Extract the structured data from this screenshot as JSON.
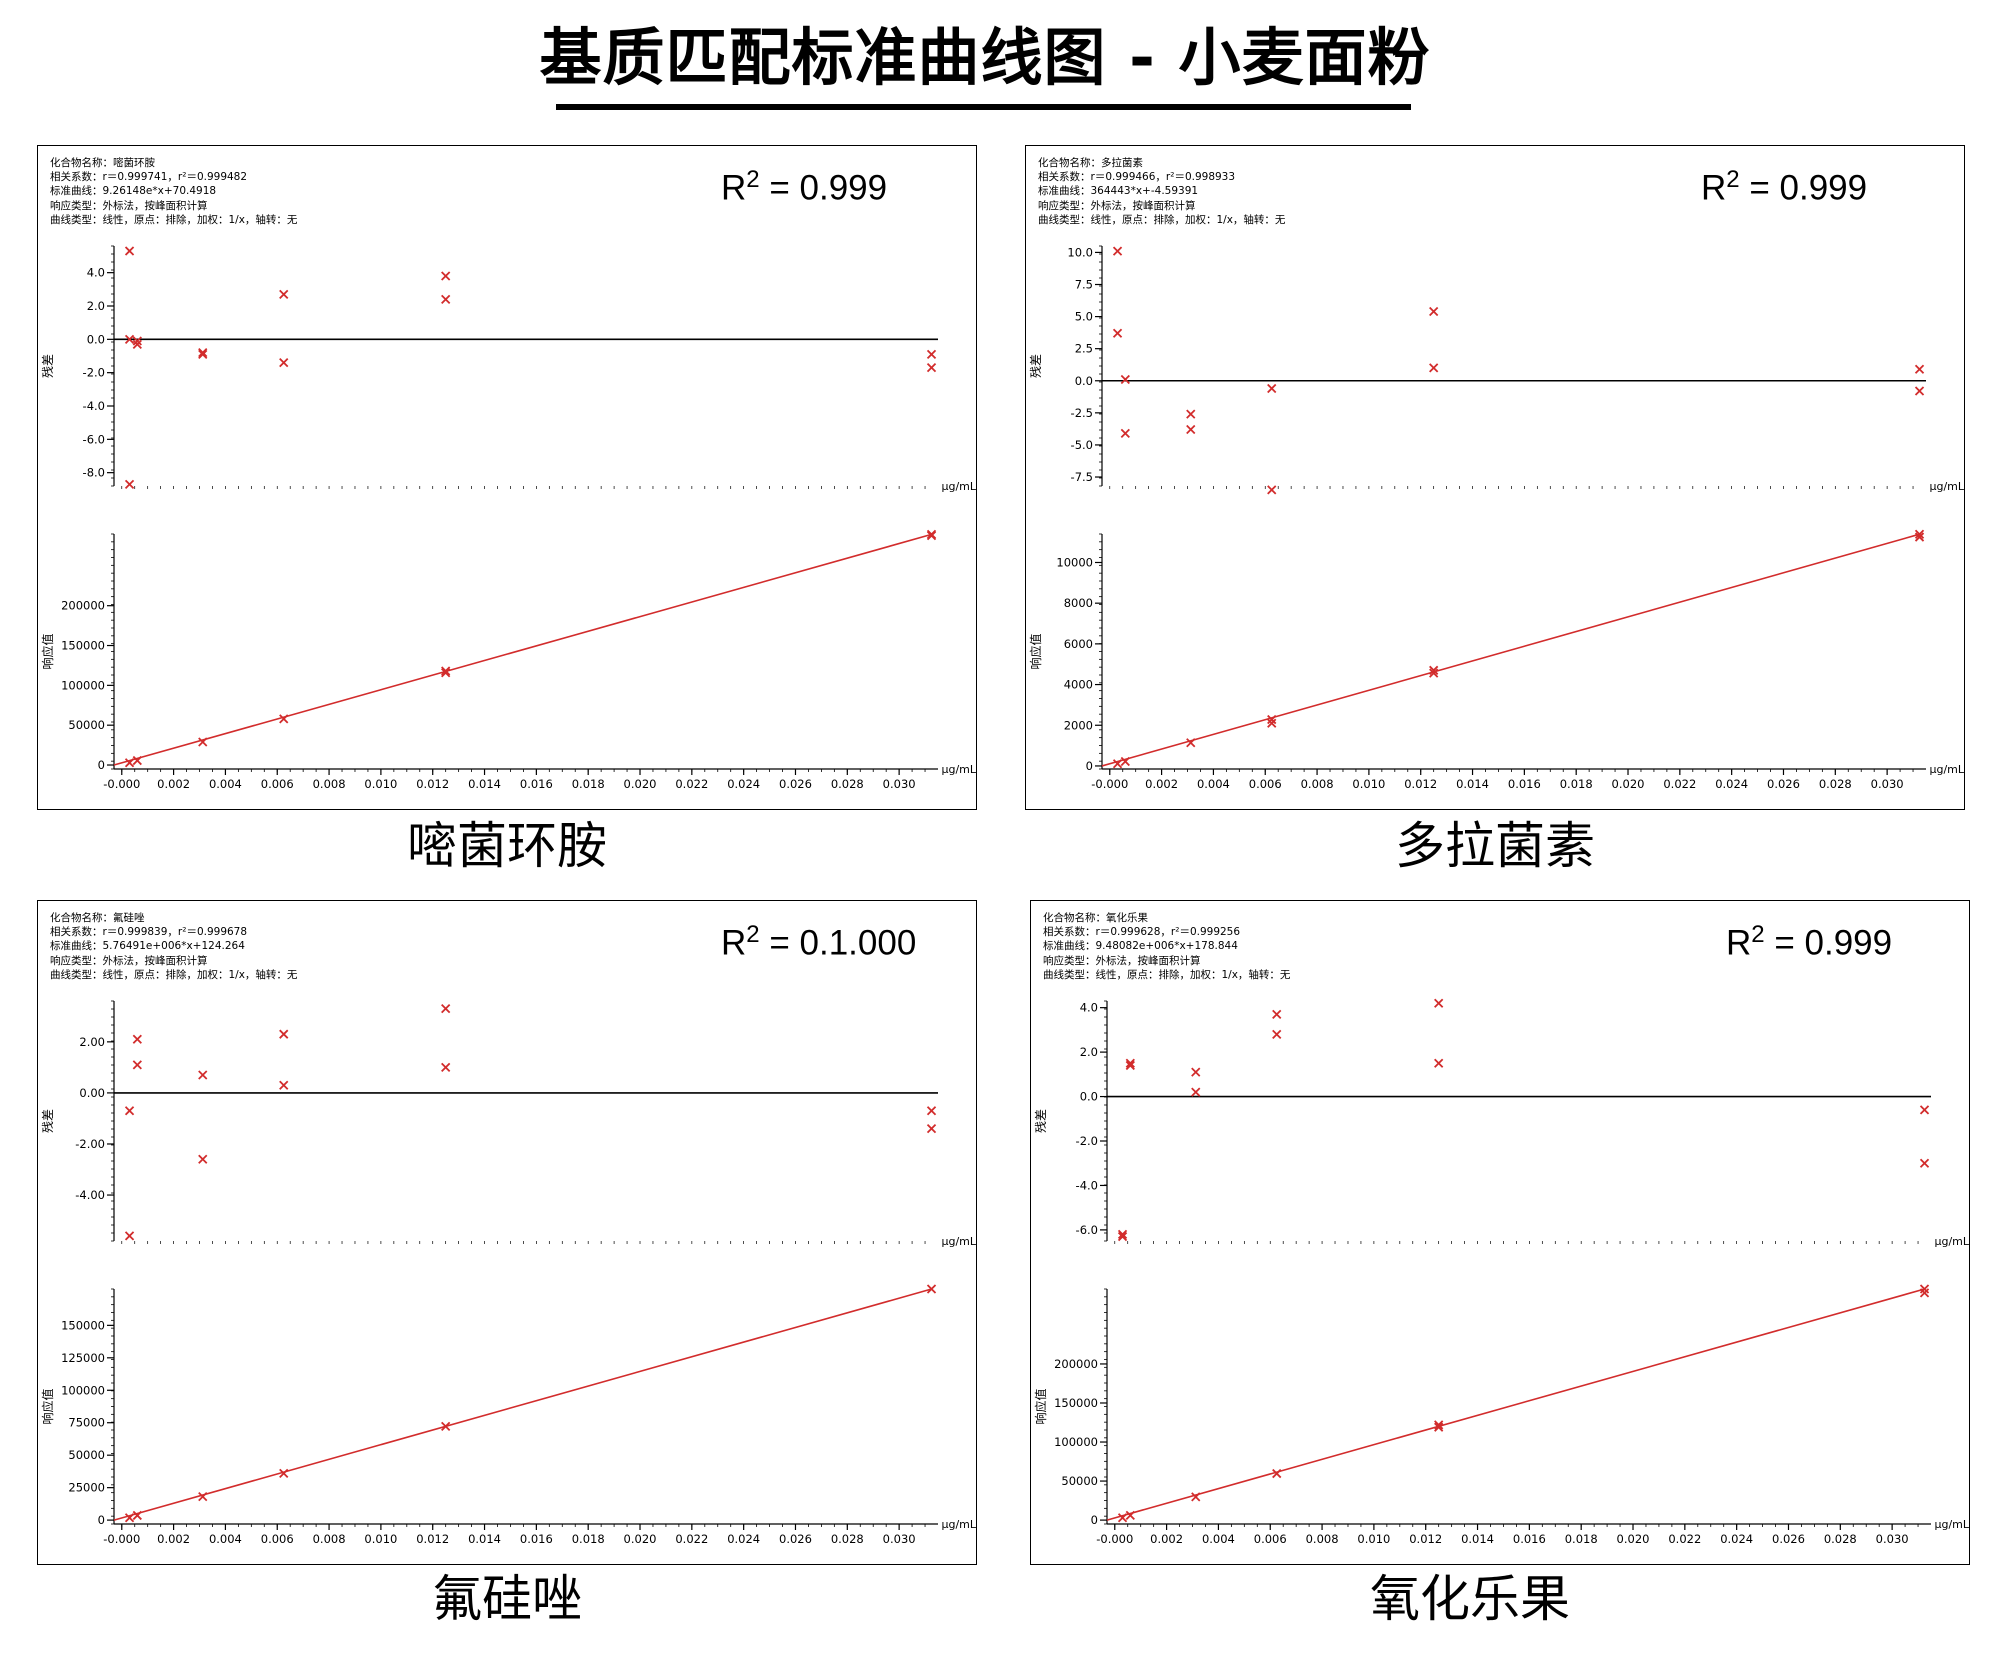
{
  "page": {
    "title": "基质匹配标准曲线图 - 小麦面粉"
  },
  "panels": [
    {
      "caption": "嘧菌环胺",
      "info": [
        "化合物名称：嘧菌环胺",
        "相关系数：r＝0.999741，r²＝0.999482",
        "标准曲线：9.26148e*x+70.4918",
        "响应类型：外标法，按峰面积计算",
        "曲线类型：线性，原点：排除，加权：1/x，轴转：无"
      ],
      "r2_label": "R",
      "r2_sup": "2",
      "r2_value": " = 0.999",
      "unit": "μg/mL"
    },
    {
      "caption": "多拉菌素",
      "info": [
        "化合物名称：多拉菌素",
        "相关系数：r＝0.999466，r²＝0.998933",
        "标准曲线：364443*x+-4.59391",
        "响应类型：外标法，按峰面积计算",
        "曲线类型：线性，原点：排除，加权：1/x，轴转：无"
      ],
      "r2_label": "R",
      "r2_sup": "2",
      "r2_value": " = 0.999",
      "unit": "μg/mL"
    },
    {
      "caption": "氟硅唑",
      "info": [
        "化合物名称：氟硅唑",
        "相关系数：r＝0.999839，r²＝0.999678",
        "标准曲线：5.76491e+006*x+124.264",
        "响应类型：外标法，按峰面积计算",
        "曲线类型：线性，原点：排除，加权：1/x，轴转：无"
      ],
      "r2_label": "R",
      "r2_sup": "2",
      "r2_value": " = 0.1.000",
      "unit": "μg/mL"
    },
    {
      "caption": "氧化乐果",
      "info": [
        "化合物名称：氧化乐果",
        "相关系数：r＝0.999628，r²＝0.999256",
        "标准曲线：9.48082e+006*x+178.844",
        "响应类型：外标法，按峰面积计算",
        "曲线类型：线性，原点：排除，加权：1/x，轴转：无"
      ],
      "r2_label": "R",
      "r2_sup": "2",
      "r2_value": " = 0.999",
      "unit": "μg/mL"
    }
  ],
  "chart_data": [
    {
      "compound": "嘧菌环胺",
      "part": "residual",
      "type": "scatter",
      "ylabel": "残差",
      "xlabel": "μg/mL",
      "ylim": [
        -8.8,
        5.6
      ],
      "xlim": [
        -0.0003,
        0.0315
      ],
      "yticks": [
        4.0,
        2.0,
        0.0,
        -2.0,
        -4.0,
        -6.0,
        -8.0
      ],
      "yticklabels": [
        "4.0",
        "2.0",
        "0.0",
        "-2.0",
        "-4.0",
        "-6.0",
        "-8.0"
      ],
      "zero_line": true,
      "marker_color": "#d22c2c",
      "points": [
        [
          0.0003,
          5.3
        ],
        [
          0.0003,
          -8.7
        ],
        [
          0.0003,
          0.0
        ],
        [
          0.0006,
          -0.1
        ],
        [
          0.0006,
          -0.3
        ],
        [
          0.003125,
          -0.8
        ],
        [
          0.003125,
          -0.9
        ],
        [
          0.00625,
          2.7
        ],
        [
          0.00625,
          -1.4
        ],
        [
          0.0125,
          3.8
        ],
        [
          0.0125,
          2.4
        ],
        [
          0.03125,
          -0.9
        ],
        [
          0.03125,
          -1.7
        ]
      ]
    },
    {
      "compound": "嘧菌环胺",
      "part": "calibration",
      "type": "scatter",
      "ylabel": "响应值",
      "xlabel": "μg/mL",
      "ylim": [
        -5000,
        290000
      ],
      "xlim": [
        -0.0003,
        0.0315
      ],
      "yticks": [
        0,
        50000,
        100000,
        150000,
        200000
      ],
      "yticklabels": [
        "0",
        "50000",
        "100000",
        "150000",
        "200000"
      ],
      "xticks": [
        0.0,
        0.002,
        0.004,
        0.006,
        0.008,
        0.01,
        0.012,
        0.014,
        0.016,
        0.018,
        0.02,
        0.022,
        0.024,
        0.026,
        0.028,
        0.03
      ],
      "xticklabels": [
        "-0.000",
        "0.002",
        "0.004",
        "0.006",
        "0.008",
        "0.010",
        "0.012",
        "0.014",
        "0.016",
        "0.018",
        "0.020",
        "0.022",
        "0.024",
        "0.026",
        "0.028",
        "0.030"
      ],
      "fit_line": {
        "x": [
          -0.0003,
          0.03125
        ],
        "y": [
          0,
          289500
        ]
      },
      "line_color": "#d22c2c",
      "marker_color": "#d22c2c",
      "points": [
        [
          0.0003,
          2800
        ],
        [
          0.0006,
          5600
        ],
        [
          0.003125,
          28900
        ],
        [
          0.00625,
          57900
        ],
        [
          0.0125,
          115800
        ],
        [
          0.0125,
          118000
        ],
        [
          0.03125,
          289500
        ],
        [
          0.03125,
          288000
        ]
      ]
    },
    {
      "compound": "多拉菌素",
      "part": "residual",
      "type": "scatter",
      "ylabel": "残差",
      "xlabel": "μg/mL",
      "ylim": [
        -8.2,
        10.5
      ],
      "xlim": [
        -0.0003,
        0.0315
      ],
      "yticks": [
        10.0,
        7.5,
        5.0,
        2.5,
        0.0,
        -2.5,
        -5.0,
        -7.5
      ],
      "yticklabels": [
        "10.0",
        "7.5",
        "5.0",
        "2.5",
        "0.0",
        "-2.5",
        "-5.0",
        "-7.5"
      ],
      "zero_line": true,
      "marker_color": "#d22c2c",
      "points": [
        [
          0.0003,
          10.1
        ],
        [
          0.0003,
          3.7
        ],
        [
          0.0006,
          0.1
        ],
        [
          0.0006,
          -4.1
        ],
        [
          0.003125,
          -2.6
        ],
        [
          0.003125,
          -3.8
        ],
        [
          0.00625,
          -0.6
        ],
        [
          0.00625,
          -8.5
        ],
        [
          0.0125,
          5.4
        ],
        [
          0.0125,
          1.0
        ],
        [
          0.03125,
          0.9
        ],
        [
          0.03125,
          -0.8
        ]
      ]
    },
    {
      "compound": "多拉菌素",
      "part": "calibration",
      "type": "scatter",
      "ylabel": "响应值",
      "xlabel": "μg/mL",
      "ylim": [
        -150,
        11400
      ],
      "xlim": [
        -0.0003,
        0.0315
      ],
      "yticks": [
        0,
        2000,
        4000,
        6000,
        8000,
        10000
      ],
      "yticklabels": [
        "0",
        "2000",
        "4000",
        "6000",
        "8000",
        "10000"
      ],
      "xticks": [
        0.0,
        0.002,
        0.004,
        0.006,
        0.008,
        0.01,
        0.012,
        0.014,
        0.016,
        0.018,
        0.02,
        0.022,
        0.024,
        0.026,
        0.028,
        0.03
      ],
      "xticklabels": [
        "-0.000",
        "0.002",
        "0.004",
        "0.006",
        "0.008",
        "0.010",
        "0.012",
        "0.014",
        "0.016",
        "0.018",
        "0.020",
        "0.022",
        "0.024",
        "0.026",
        "0.028",
        "0.030"
      ],
      "fit_line": {
        "x": [
          -0.0003,
          0.03125
        ],
        "y": [
          0,
          11390
        ]
      },
      "line_color": "#d22c2c",
      "marker_color": "#d22c2c",
      "points": [
        [
          0.0003,
          110
        ],
        [
          0.0006,
          220
        ],
        [
          0.003125,
          1140
        ],
        [
          0.00625,
          2100
        ],
        [
          0.00625,
          2280
        ],
        [
          0.0125,
          4560
        ],
        [
          0.0125,
          4700
        ],
        [
          0.03125,
          11390
        ],
        [
          0.03125,
          11250
        ]
      ]
    },
    {
      "compound": "氟硅唑",
      "part": "residual",
      "type": "scatter",
      "ylabel": "残差",
      "xlabel": "μg/mL",
      "ylim": [
        -5.8,
        3.6
      ],
      "xlim": [
        -0.0003,
        0.0315
      ],
      "yticks": [
        2.0,
        0.0,
        -2.0,
        -4.0
      ],
      "yticklabels": [
        "2.00",
        "0.00",
        "-2.00",
        "-4.00"
      ],
      "zero_line": true,
      "marker_color": "#d22c2c",
      "points": [
        [
          0.0003,
          -0.7
        ],
        [
          0.0003,
          -5.6
        ],
        [
          0.0006,
          2.1
        ],
        [
          0.0006,
          1.1
        ],
        [
          0.003125,
          0.7
        ],
        [
          0.003125,
          -2.6
        ],
        [
          0.00625,
          2.3
        ],
        [
          0.00625,
          0.3
        ],
        [
          0.0125,
          3.3
        ],
        [
          0.0125,
          1.0
        ],
        [
          0.03125,
          -0.7
        ],
        [
          0.03125,
          -1.4
        ]
      ]
    },
    {
      "compound": "氟硅唑",
      "part": "calibration",
      "type": "scatter",
      "ylabel": "响应值",
      "xlabel": "μg/mL",
      "ylim": [
        -3000,
        178000
      ],
      "xlim": [
        -0.0003,
        0.0315
      ],
      "yticks": [
        0,
        25000,
        50000,
        75000,
        100000,
        125000,
        150000
      ],
      "yticklabels": [
        "0",
        "25000",
        "50000",
        "75000",
        "100000",
        "125000",
        "150000"
      ],
      "xticks": [
        0.0,
        0.002,
        0.004,
        0.006,
        0.008,
        0.01,
        0.012,
        0.014,
        0.016,
        0.018,
        0.02,
        0.022,
        0.024,
        0.026,
        0.028,
        0.03
      ],
      "xticklabels": [
        "-0.000",
        "0.002",
        "0.004",
        "0.006",
        "0.008",
        "0.010",
        "0.012",
        "0.014",
        "0.016",
        "0.018",
        "0.020",
        "0.022",
        "0.024",
        "0.026",
        "0.028",
        "0.030"
      ],
      "fit_line": {
        "x": [
          -0.0003,
          0.03125
        ],
        "y": [
          0,
          178000
        ]
      },
      "line_color": "#d22c2c",
      "marker_color": "#d22c2c",
      "points": [
        [
          0.0003,
          1800
        ],
        [
          0.0006,
          3600
        ],
        [
          0.003125,
          18100
        ],
        [
          0.00625,
          36000
        ],
        [
          0.0125,
          72200
        ],
        [
          0.03125,
          178000
        ]
      ]
    },
    {
      "compound": "氧化乐果",
      "part": "residual",
      "type": "scatter",
      "ylabel": "残差",
      "xlabel": "μg/mL",
      "ylim": [
        -6.5,
        4.3
      ],
      "xlim": [
        -0.0003,
        0.0315
      ],
      "yticks": [
        4.0,
        2.0,
        0.0,
        -2.0,
        -4.0,
        -6.0
      ],
      "yticklabels": [
        "4.0",
        "2.0",
        "0.0",
        "-2.0",
        "-4.0",
        "-6.0"
      ],
      "zero_line": true,
      "marker_color": "#d22c2c",
      "points": [
        [
          0.0003,
          -6.2
        ],
        [
          0.0003,
          -6.3
        ],
        [
          0.0006,
          1.5
        ],
        [
          0.0006,
          1.4
        ],
        [
          0.003125,
          1.1
        ],
        [
          0.003125,
          0.2
        ],
        [
          0.00625,
          3.7
        ],
        [
          0.00625,
          2.8
        ],
        [
          0.0125,
          4.2
        ],
        [
          0.0125,
          1.5
        ],
        [
          0.03125,
          -0.6
        ],
        [
          0.03125,
          -3.0
        ]
      ]
    },
    {
      "compound": "氧化乐果",
      "part": "calibration",
      "type": "scatter",
      "ylabel": "响应值",
      "xlabel": "μg/mL",
      "ylim": [
        -5000,
        296000
      ],
      "xlim": [
        -0.0003,
        0.0315
      ],
      "yticks": [
        0,
        50000,
        100000,
        150000,
        200000
      ],
      "yticklabels": [
        "0",
        "50000",
        "100000",
        "150000",
        "200000"
      ],
      "xticks": [
        0.0,
        0.002,
        0.004,
        0.006,
        0.008,
        0.01,
        0.012,
        0.014,
        0.016,
        0.018,
        0.02,
        0.022,
        0.024,
        0.026,
        0.028,
        0.03
      ],
      "xticklabels": [
        "-0.000",
        "0.002",
        "0.004",
        "0.006",
        "0.008",
        "0.010",
        "0.012",
        "0.014",
        "0.016",
        "0.018",
        "0.020",
        "0.022",
        "0.024",
        "0.026",
        "0.028",
        "0.030"
      ],
      "fit_line": {
        "x": [
          -0.0003,
          0.03125
        ],
        "y": [
          0,
          296000
        ]
      },
      "line_color": "#d22c2c",
      "marker_color": "#d22c2c",
      "points": [
        [
          0.0003,
          3000
        ],
        [
          0.0006,
          6000
        ],
        [
          0.003125,
          29800
        ],
        [
          0.00625,
          59600
        ],
        [
          0.0125,
          119000
        ],
        [
          0.0125,
          122000
        ],
        [
          0.03125,
          296000
        ],
        [
          0.03125,
          291000
        ]
      ]
    }
  ]
}
